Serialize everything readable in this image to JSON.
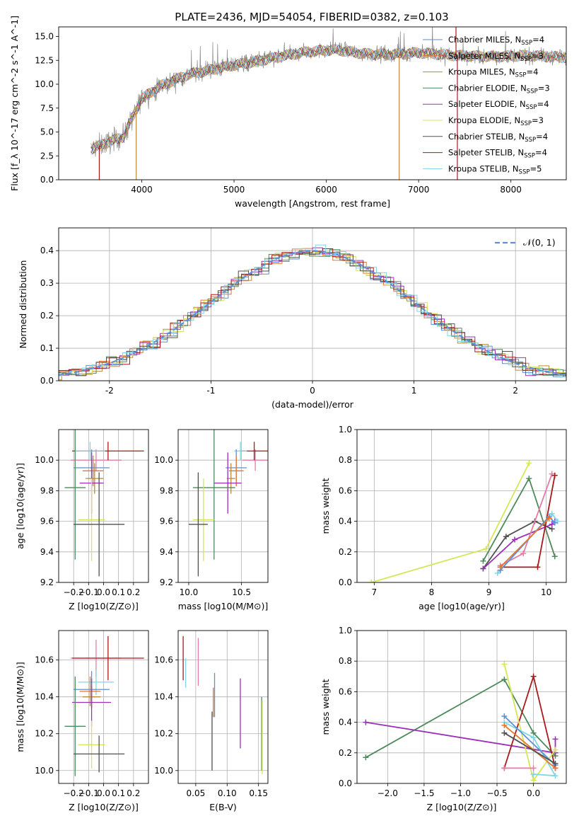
{
  "title": "PLATE=2436, MJD=54054, FIBERID=0382, z=0.103",
  "legend_spectrum": [
    {
      "label": "Chabrier MILES, N_SSP=4",
      "color": "#5b8fd9"
    },
    {
      "label": "Salpeter MILES, N_SSP=3",
      "color": "#e8762d"
    },
    {
      "label": "Kroupa MILES, N_SSP=4",
      "color": "#b88a3a"
    },
    {
      "label": "Chabrier ELODIE, N_SSP=3",
      "color": "#4e8a5a"
    },
    {
      "label": "Salpeter ELODIE, N_SSP=4",
      "color": "#9b30b8"
    },
    {
      "label": "Kroupa ELODIE, N_SSP=3",
      "color": "#d6e65a"
    },
    {
      "label": "Chabrier STELIB, N_SSP=4",
      "color": "#505050"
    },
    {
      "label": "Salpeter STELIB, N_SSP=4",
      "color": "#a81a1a"
    },
    {
      "label": "Kroupa STELIB, N_SSP=5",
      "color": "#7fd6e6"
    }
  ],
  "legend_hist": {
    "label": "𝒩(0, 1)",
    "color": "#5b8fd9"
  },
  "chart_data": [
    {
      "type": "line",
      "ylabel": "Flux [f_λ 10^-17 erg cm^-2 s^-1 A^-1]",
      "xlabel": "wavelength [Angstrom, rest frame]",
      "xlim": [
        3100,
        8600
      ],
      "ylim": [
        0,
        16
      ],
      "xticks": [
        4000,
        5000,
        6000,
        7000,
        8000
      ],
      "yticks": [
        0.0,
        2.5,
        5.0,
        7.5,
        10.0,
        12.5,
        15.0
      ],
      "ytick_labels": [
        "0.0",
        "2.5",
        "5.0",
        "7.5",
        "10.0",
        "12.5",
        "15.0"
      ],
      "continuum": {
        "x": [
          3450,
          3600,
          3800,
          4000,
          4200,
          4500,
          4800,
          5000,
          5200,
          5500,
          5800,
          6100,
          6400,
          6700,
          7000,
          7400,
          7800,
          8200,
          8600
        ],
        "y": [
          3.2,
          3.8,
          4.5,
          8.5,
          9.8,
          11.0,
          11.6,
          12.0,
          12.3,
          12.9,
          13.4,
          13.6,
          13.2,
          13.1,
          13.3,
          13.0,
          12.9,
          13.0,
          12.8
        ]
      },
      "spikes": [
        {
          "x": 3540,
          "y": 0,
          "color": "#a81a1a"
        },
        {
          "x": 3940,
          "y": 0,
          "color": "#b88a3a"
        },
        {
          "x": 6790,
          "y": 0,
          "color": "#b88a3a"
        },
        {
          "x": 7420,
          "y": 0,
          "color": "#a81a1a"
        },
        {
          "x": 7405,
          "y": 16,
          "color": "#a81a1a"
        }
      ]
    },
    {
      "type": "histogram",
      "xlabel": "(data-model)/error",
      "ylabel": "Normed distribution",
      "xlim": [
        -2.5,
        2.5
      ],
      "ylim": [
        0,
        0.47
      ],
      "xticks": [
        -2,
        -1,
        0,
        1,
        2
      ],
      "yticks": [
        0.0,
        0.1,
        0.2,
        0.3,
        0.4
      ],
      "ytick_labels": [
        "0.0",
        "0.1",
        "0.2",
        "0.3",
        "0.4"
      ],
      "bin_width": 0.1,
      "curve": "normal(0,1)"
    },
    {
      "type": "scatter",
      "subtype": "errorbar",
      "xlabel": "Z [log10(Z/Z⊙)]",
      "ylabel": "age [log10(age/yr)]",
      "xlim": [
        -0.3,
        0.3
      ],
      "ylim": [
        9.2,
        10.2
      ],
      "xticks": [
        -0.2,
        -0.1,
        0.0,
        0.1,
        0.2
      ],
      "xtick_labels": [
        "−0.2",
        "−0.1",
        "0.0",
        "0.1",
        "0.2"
      ],
      "yticks": [
        9.2,
        9.4,
        9.6,
        9.8,
        10.0
      ],
      "ytick_labels": [
        "9.2",
        "9.4",
        "9.6",
        "9.8",
        "10.0"
      ],
      "points": [
        {
          "x": -0.05,
          "xerr": 0.17,
          "y": 10.0,
          "yerr": 0.07,
          "color": "#e87aa8"
        },
        {
          "x": 0.03,
          "xerr": 0.24,
          "y": 10.06,
          "yerr": 0.06,
          "color": "#a81a1a"
        },
        {
          "x": -0.09,
          "xerr": 0.1,
          "y": 10.06,
          "yerr": 0.06,
          "color": "#7fd6e6"
        },
        {
          "x": -0.08,
          "xerr": 0.12,
          "y": 9.95,
          "yerr": 0.12,
          "color": "#5b8fd9"
        },
        {
          "x": -0.07,
          "xerr": 0.07,
          "y": 9.93,
          "yerr": 0.1,
          "color": "#e8762d"
        },
        {
          "x": -0.06,
          "xerr": 0.06,
          "y": 9.88,
          "yerr": 0.1,
          "color": "#b88a3a"
        },
        {
          "x": -0.08,
          "xerr": 0.08,
          "y": 9.85,
          "yerr": 0.2,
          "color": "#9b30b8"
        },
        {
          "x": -0.19,
          "xerr": 0.07,
          "y": 9.82,
          "yerr": 0.47,
          "color": "#4e8a5a"
        },
        {
          "x": -0.08,
          "xerr": 0.09,
          "y": 9.61,
          "yerr": 0.27,
          "color": "#d6e65a"
        },
        {
          "x": -0.03,
          "xerr": 0.17,
          "y": 9.58,
          "yerr": 0.34,
          "color": "#505050"
        }
      ]
    },
    {
      "type": "scatter",
      "subtype": "errorbar",
      "xlabel": "mass [log10(M/M⊙)]",
      "xlim": [
        9.9,
        10.75
      ],
      "ylim": [
        9.2,
        10.2
      ],
      "xticks": [
        10.0,
        10.5
      ],
      "xtick_labels": [
        "10.0",
        "10.5"
      ],
      "yticks": [
        9.2,
        9.4,
        9.6,
        9.8,
        10.0
      ],
      "ytick_labels": [
        "9.2",
        "9.4",
        "9.6",
        "9.8",
        "10.0"
      ],
      "points": [
        {
          "x": 10.63,
          "xerr": 0.12,
          "y": 10.0,
          "yerr": 0.07,
          "color": "#e87aa8"
        },
        {
          "x": 10.62,
          "xerr": 0.14,
          "y": 10.06,
          "yerr": 0.06,
          "color": "#a81a1a"
        },
        {
          "x": 10.49,
          "xerr": 0.06,
          "y": 10.06,
          "yerr": 0.06,
          "color": "#7fd6e6"
        },
        {
          "x": 10.45,
          "xerr": 0.1,
          "y": 9.95,
          "yerr": 0.12,
          "color": "#5b8fd9"
        },
        {
          "x": 10.45,
          "xerr": 0.07,
          "y": 9.93,
          "yerr": 0.1,
          "color": "#e8762d"
        },
        {
          "x": 10.4,
          "xerr": 0.04,
          "y": 9.88,
          "yerr": 0.1,
          "color": "#b88a3a"
        },
        {
          "x": 10.37,
          "xerr": 0.13,
          "y": 9.85,
          "yerr": 0.2,
          "color": "#9b30b8"
        },
        {
          "x": 10.24,
          "xerr": 0.2,
          "y": 9.82,
          "yerr": 0.47,
          "color": "#4e8a5a"
        },
        {
          "x": 10.14,
          "xerr": 0.1,
          "y": 9.61,
          "yerr": 0.27,
          "color": "#d6e65a"
        },
        {
          "x": 10.09,
          "xerr": 0.09,
          "y": 9.58,
          "yerr": 0.34,
          "color": "#505050"
        }
      ]
    },
    {
      "type": "line",
      "xlabel": "age [log10(age/yr)]",
      "ylabel": "mass weight",
      "xlim": [
        6.7,
        10.35
      ],
      "ylim": [
        0,
        1
      ],
      "xticks": [
        7,
        8,
        9,
        10
      ],
      "yticks": [
        0.0,
        0.2,
        0.4,
        0.6,
        0.8,
        1.0
      ],
      "ytick_labels": [
        "0.0",
        "0.2",
        "0.4",
        "0.6",
        "0.8",
        "1.0"
      ],
      "series": [
        {
          "color": "#d6e65a",
          "x": [
            6.95,
            8.95,
            9.7
          ],
          "y": [
            0.0,
            0.22,
            0.78
          ]
        },
        {
          "color": "#4e8a5a",
          "x": [
            8.9,
            9.7,
            10.15
          ],
          "y": [
            0.14,
            0.68,
            0.17
          ]
        },
        {
          "color": "#505050",
          "x": [
            8.9,
            9.3,
            9.8,
            10.1
          ],
          "y": [
            0.09,
            0.3,
            0.4,
            0.35
          ]
        },
        {
          "color": "#9b30b8",
          "x": [
            8.9,
            9.45,
            10.1,
            10.15
          ],
          "y": [
            0.09,
            0.28,
            0.38,
            0.4
          ]
        },
        {
          "color": "#e87aa8",
          "x": [
            9.2,
            9.6,
            10.1
          ],
          "y": [
            0.11,
            0.19,
            0.71
          ]
        },
        {
          "color": "#a81a1a",
          "x": [
            9.2,
            9.85,
            10.15
          ],
          "y": [
            0.1,
            0.1,
            0.7
          ]
        },
        {
          "color": "#7fd6e6",
          "x": [
            9.15,
            10.1,
            10.2
          ],
          "y": [
            0.06,
            0.45,
            0.4
          ]
        },
        {
          "color": "#5b8fd9",
          "x": [
            9.2,
            10.05,
            10.15
          ],
          "y": [
            0.08,
            0.43,
            0.39
          ]
        },
        {
          "color": "#e8762d",
          "x": [
            9.2,
            10.05
          ],
          "y": [
            0.1,
            0.42
          ]
        }
      ]
    },
    {
      "type": "scatter",
      "subtype": "errorbar",
      "xlabel": "Z [log10(Z/Z⊙)]",
      "ylabel": "mass [log10(M/M⊙)]",
      "xlim": [
        -0.3,
        0.3
      ],
      "ylim": [
        9.93,
        10.76
      ],
      "xticks": [
        -0.2,
        -0.1,
        0.0,
        0.1,
        0.2
      ],
      "xtick_labels": [
        "−0.2",
        "−0.1",
        "0.0",
        "0.1",
        "0.2"
      ],
      "yticks": [
        10.0,
        10.2,
        10.4,
        10.6
      ],
      "ytick_labels": [
        "10.0",
        "10.2",
        "10.4",
        "10.6"
      ],
      "points": [
        {
          "x": -0.05,
          "xerr": 0.17,
          "y": 10.61,
          "yerr": 0.1,
          "color": "#e87aa8"
        },
        {
          "x": 0.03,
          "xerr": 0.24,
          "y": 10.61,
          "yerr": 0.12,
          "color": "#a81a1a"
        },
        {
          "x": -0.05,
          "xerr": 0.12,
          "y": 10.48,
          "yerr": 0.07,
          "color": "#7fd6e6"
        },
        {
          "x": -0.08,
          "xerr": 0.12,
          "y": 10.44,
          "yerr": 0.1,
          "color": "#5b8fd9"
        },
        {
          "x": -0.09,
          "xerr": 0.07,
          "y": 10.43,
          "yerr": 0.08,
          "color": "#e8762d"
        },
        {
          "x": -0.08,
          "xerr": 0.06,
          "y": 10.4,
          "yerr": 0.06,
          "color": "#b88a3a"
        },
        {
          "x": -0.08,
          "xerr": 0.13,
          "y": 10.37,
          "yerr": 0.13,
          "color": "#9b30b8"
        },
        {
          "x": -0.19,
          "xerr": 0.07,
          "y": 10.24,
          "yerr": 0.27,
          "color": "#4e8a5a"
        },
        {
          "x": -0.08,
          "xerr": 0.09,
          "y": 10.14,
          "yerr": 0.13,
          "color": "#d6e65a"
        },
        {
          "x": -0.03,
          "xerr": 0.17,
          "y": 10.09,
          "yerr": 0.1,
          "color": "#505050"
        }
      ]
    },
    {
      "type": "scatter",
      "subtype": "errorbar",
      "xlabel": "E(B-V)",
      "xlim": [
        0.022,
        0.165
      ],
      "ylim": [
        9.93,
        10.76
      ],
      "xticks": [
        0.05,
        0.1,
        0.15
      ],
      "xtick_labels": [
        "0.05",
        "0.10",
        "0.15"
      ],
      "yticks": [
        10.0,
        10.2,
        10.4,
        10.6
      ],
      "ytick_labels": [
        "10.0",
        "10.2",
        "10.4",
        "10.6"
      ],
      "points": [
        {
          "x": 0.03,
          "y": 10.61,
          "yerr": 0.12,
          "color": "#a81a1a"
        },
        {
          "x": 0.034,
          "y": 10.53,
          "yerr": 0.08,
          "color": "#7fd6e6"
        },
        {
          "x": 0.054,
          "y": 10.59,
          "yerr": 0.13,
          "color": "#e87aa8"
        },
        {
          "x": 0.076,
          "y": 10.16,
          "yerr": 0.16,
          "color": "#505050"
        },
        {
          "x": 0.078,
          "y": 10.37,
          "yerr": 0.08,
          "color": "#e8762d"
        },
        {
          "x": 0.08,
          "y": 10.41,
          "yerr": 0.12,
          "color": "#5b8fd9"
        },
        {
          "x": 0.121,
          "y": 10.31,
          "yerr": 0.19,
          "color": "#9b30b8"
        },
        {
          "x": 0.155,
          "y": 10.2,
          "yerr": 0.2,
          "color": "#4e8a5a"
        },
        {
          "x": 0.156,
          "y": 10.18,
          "yerr": 0.2,
          "color": "#d6e65a"
        }
      ]
    },
    {
      "type": "line",
      "xlabel": "Z [log10(Z/Z⊙)]",
      "ylabel": "mass weight",
      "xlim": [
        -2.42,
        0.45
      ],
      "ylim": [
        0,
        1
      ],
      "xticks": [
        -2.0,
        -1.5,
        -1.0,
        -0.5,
        0.0
      ],
      "xtick_labels": [
        "−2.0",
        "−1.5",
        "−1.0",
        "−0.5",
        "0.0"
      ],
      "yticks": [
        0.0,
        0.2,
        0.4,
        0.6,
        0.8,
        1.0
      ],
      "ytick_labels": [
        "0.0",
        "0.2",
        "0.4",
        "0.6",
        "0.8",
        "1.0"
      ],
      "series": [
        {
          "color": "#4e8a5a",
          "x": [
            -2.3,
            -0.4,
            0.0,
            0.3
          ],
          "y": [
            0.17,
            0.68,
            0.33,
            0.18
          ]
        },
        {
          "color": "#9b30b8",
          "x": [
            -2.3,
            0.3,
            0.3
          ],
          "y": [
            0.4,
            0.2,
            0.29
          ]
        },
        {
          "color": "#a81a1a",
          "x": [
            -0.4,
            0.0,
            0.3
          ],
          "y": [
            0.1,
            0.7,
            0.1
          ]
        },
        {
          "color": "#d6e65a",
          "x": [
            -0.4,
            0.0,
            0.3
          ],
          "y": [
            0.78,
            0.02,
            0.22
          ]
        },
        {
          "color": "#7fd6e6",
          "x": [
            -0.4,
            0.0,
            0.3,
            0.0
          ],
          "y": [
            0.4,
            0.3,
            0.05,
            0.06
          ]
        },
        {
          "color": "#5b8fd9",
          "x": [
            -0.4,
            0.3
          ],
          "y": [
            0.44,
            0.12
          ]
        },
        {
          "color": "#e8762d",
          "x": [
            -0.4,
            0.3
          ],
          "y": [
            0.38,
            0.1
          ]
        },
        {
          "color": "#505050",
          "x": [
            -0.4,
            0.3
          ],
          "y": [
            0.33,
            0.13
          ]
        },
        {
          "color": "#e87aa8",
          "x": [
            -0.4,
            0.0
          ],
          "y": [
            0.1,
            0.1
          ]
        }
      ]
    }
  ]
}
